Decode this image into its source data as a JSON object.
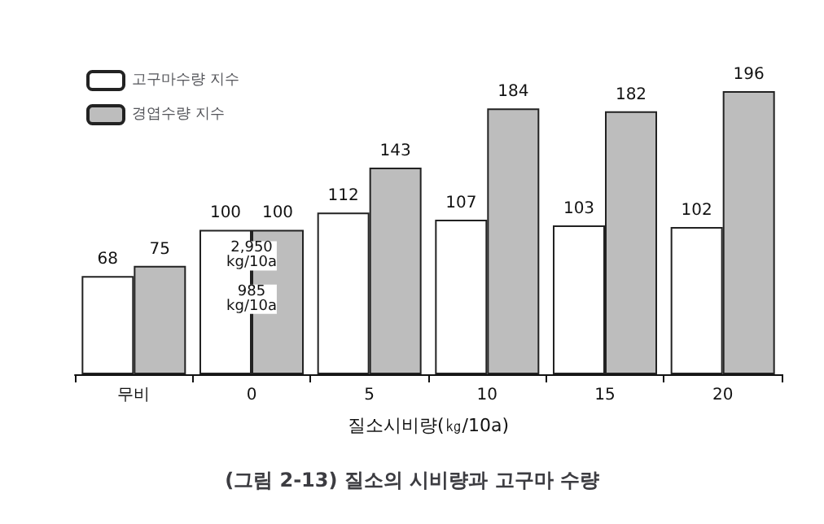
{
  "chart_data": {
    "type": "bar",
    "title": "(그림 2-13) 질소의 시비량과 고구마 수량",
    "xlabel": "질소시비량(㎏/10a)",
    "categories": [
      "무비",
      "0",
      "5",
      "10",
      "15",
      "20"
    ],
    "series": [
      {
        "name": "고구마수량 지수",
        "color": "#ffffff",
        "values": [
          68,
          100,
          112,
          107,
          103,
          102
        ]
      },
      {
        "name": "경엽수량 지수",
        "color": "#bdbdbd",
        "values": [
          75,
          100,
          143,
          184,
          182,
          196
        ]
      }
    ],
    "data_labels": true,
    "legend": "top left",
    "annotations": [
      {
        "text": "2,950\nkg/10a",
        "x": "0",
        "y": 82
      },
      {
        "text": "985\nkg/10a",
        "x": "0",
        "y": 52
      }
    ]
  }
}
